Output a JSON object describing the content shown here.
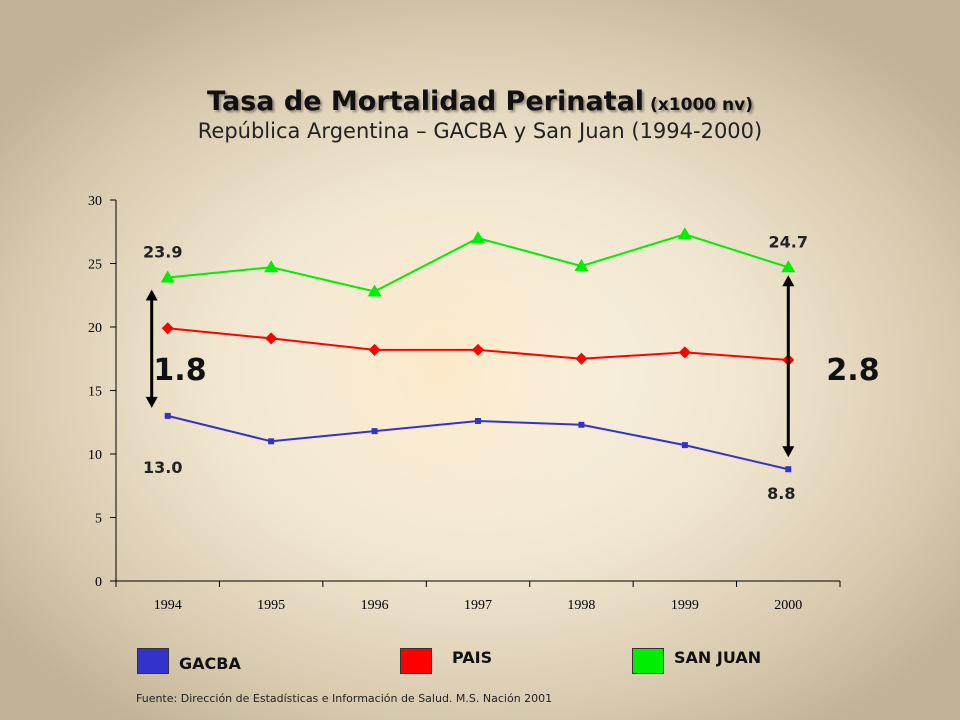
{
  "title": {
    "main": "Tasa de Mortalidad Perinatal",
    "unit": "(x1000 nv)",
    "subtitle": "República Argentina – GACBA y San Juan (1994-2000)"
  },
  "source": "Fuente: Dirección de Estadísticas e Información de Salud. M.S. Nación 2001",
  "legend": [
    {
      "label": "GACBA",
      "color": "#3333cc"
    },
    {
      "label": "PAIS",
      "color": "#ff0000"
    },
    {
      "label": "SAN JUAN",
      "color": "#00ee00"
    }
  ],
  "chart_data": {
    "type": "line",
    "categories": [
      "1994",
      "1995",
      "1996",
      "1997",
      "1998",
      "1999",
      "2000"
    ],
    "ylim": [
      0,
      30
    ],
    "yticks": [
      0,
      5,
      10,
      15,
      20,
      25,
      30
    ],
    "grid": false,
    "legend_position": "bottom",
    "series": [
      {
        "name": "GACBA",
        "color": "#3333cc",
        "marker": "square",
        "values": [
          13.0,
          11.0,
          11.8,
          12.6,
          12.3,
          10.7,
          8.8
        ]
      },
      {
        "name": "PAIS",
        "color": "#ff0000",
        "marker": "diamond",
        "values": [
          19.9,
          19.1,
          18.2,
          18.2,
          17.5,
          18.0,
          17.4
        ]
      },
      {
        "name": "SAN JUAN",
        "color": "#00ee00",
        "marker": "triangle",
        "values": [
          23.9,
          24.7,
          22.8,
          27.0,
          24.8,
          27.3,
          24.7
        ]
      }
    ],
    "annotations": {
      "value_labels": [
        {
          "text": "23.9",
          "category": "1994",
          "value": 23.9
        },
        {
          "text": "13.0",
          "category": "1994",
          "value": 13.0
        },
        {
          "text": "24.7",
          "category": "2000",
          "value": 24.7
        },
        {
          "text": "8.8",
          "category": "2000",
          "value": 8.8
        }
      ],
      "ratios": [
        {
          "text": "1.8",
          "category": "1994",
          "from": 13.0,
          "to": 23.9
        },
        {
          "text": "2.8",
          "category": "2000",
          "from": 8.8,
          "to": 24.7
        }
      ]
    }
  }
}
